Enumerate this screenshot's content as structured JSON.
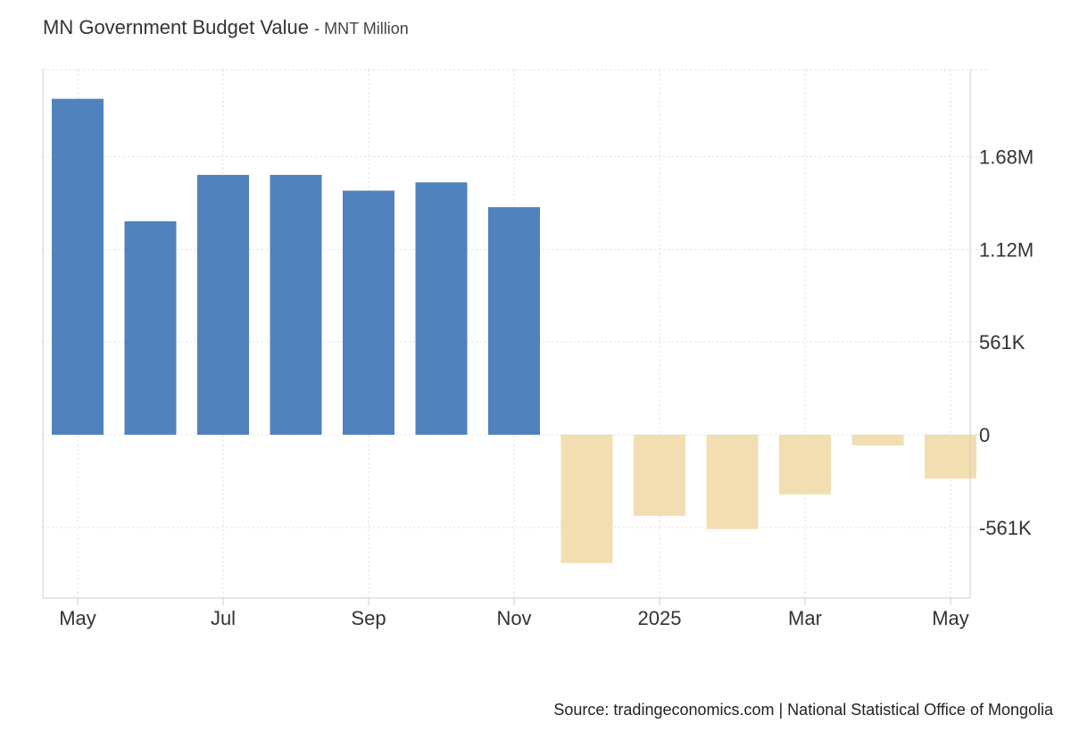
{
  "header": {
    "title": "MN Government Budget Value",
    "subtitle": "- MNT Million"
  },
  "footer": {
    "source": "Source: tradingeconomics.com | National Statistical Office of Mongolia"
  },
  "chart_data": {
    "type": "bar",
    "x": [
      "2024-05",
      "2024-06",
      "2024-07",
      "2024-08",
      "2024-09",
      "2024-10",
      "2024-11",
      "2024-12",
      "2025-01",
      "2025-02",
      "2025-03",
      "2025-04",
      "2025-05"
    ],
    "values": [
      2030000,
      1290000,
      1570000,
      1570000,
      1475000,
      1525000,
      1375000,
      -775000,
      -490000,
      -570000,
      -360000,
      -65000,
      -265000
    ],
    "yticks": [
      {
        "value": -561000,
        "label": "-561K"
      },
      {
        "value": 0,
        "label": "0"
      },
      {
        "value": 561000,
        "label": "561K"
      },
      {
        "value": 1120000,
        "label": "1.12M"
      },
      {
        "value": 1680000,
        "label": "1.68M"
      }
    ],
    "xticks": [
      {
        "index": 0,
        "label": "May"
      },
      {
        "index": 2,
        "label": "Jul"
      },
      {
        "index": 4,
        "label": "Sep"
      },
      {
        "index": 6,
        "label": "Nov"
      },
      {
        "index": 8,
        "label": "2025"
      },
      {
        "index": 10,
        "label": "Mar"
      },
      {
        "index": 12,
        "label": "May"
      }
    ],
    "ylim": [
      -1000000,
      2235000
    ],
    "grid": true,
    "colors": {
      "positive": "#5082be",
      "negative": "#f3deb2",
      "grid": "#dddddd",
      "axis": "#cccccc"
    }
  }
}
